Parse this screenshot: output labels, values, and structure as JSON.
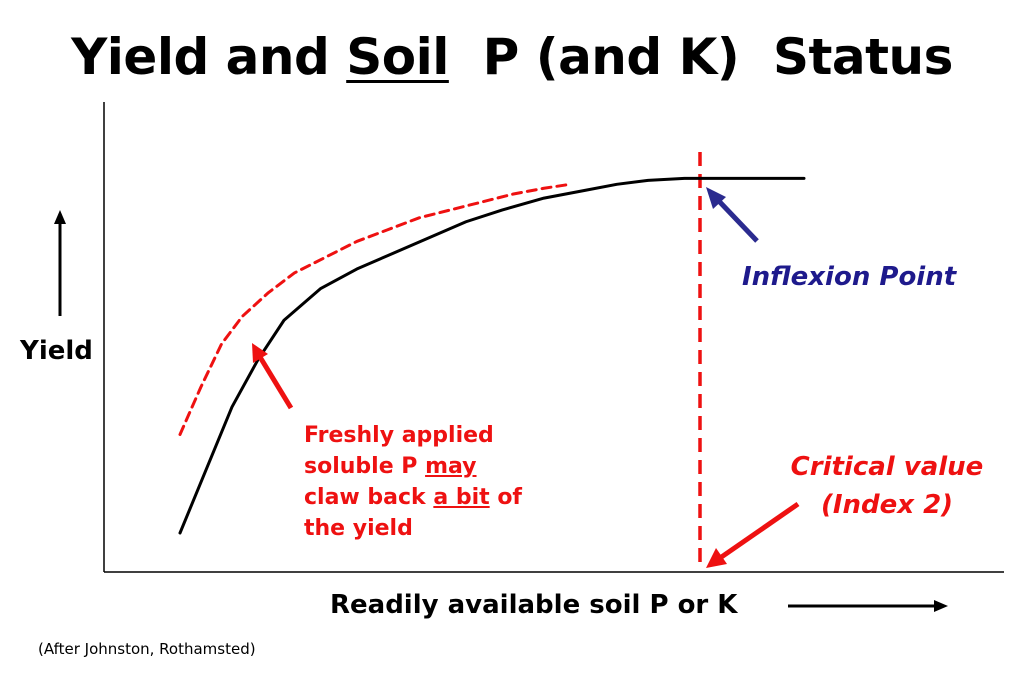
{
  "title": {
    "part1": "Yield and ",
    "underlined": "Soil",
    "part2": "  P (and K)  Status"
  },
  "source": "(After Johnston, Rothamsted)",
  "colors": {
    "axis": "#000000",
    "response_curve": "#000000",
    "fresh_curve": "#ee1111",
    "critical_line": "#ee1111",
    "inflexion_arrow": "#2b2b8f",
    "annotation_red": "#ee1111",
    "annotation_blue": "#1e1a8c"
  },
  "chart_data": {
    "type": "line",
    "title": "Yield and Soil P (and K) Status",
    "xlabel": "Readily available soil P or K",
    "ylabel": "Yield",
    "grid": false,
    "axis_ticks": false,
    "series": [
      {
        "style": "solid",
        "color": "#000000",
        "x": [
          0,
          5,
          10,
          15,
          20,
          27,
          34,
          41,
          48,
          55,
          62,
          70,
          78,
          84,
          90,
          97,
          100,
          110,
          120
        ],
        "y": [
          0,
          16,
          32,
          44,
          54,
          62,
          67,
          71,
          75,
          79,
          82,
          85,
          87,
          88.5,
          89.5,
          90,
          90,
          90,
          90
        ]
      },
      {
        "style": "dashed",
        "color": "#ee1111",
        "x": [
          0,
          4,
          8,
          12,
          17,
          22,
          28,
          34,
          40,
          46,
          52,
          58,
          64,
          70,
          75
        ],
        "y": [
          25,
          37,
          48,
          55,
          61,
          66,
          70,
          74,
          77,
          80,
          82,
          84,
          86,
          87.5,
          88.5
        ]
      }
    ],
    "critical_value_x": 100,
    "critical_line_style": "dashed",
    "annotations": {
      "inflexion": "Inflexion Point",
      "critical_line1": "Critical value",
      "critical_line2": "(Index 2)",
      "fresh_line1": "Freshly applied",
      "fresh_line2a": "soluble P ",
      "fresh_line2b": "may",
      "fresh_line3a": "claw back ",
      "fresh_line3b": "a bit",
      "fresh_line3c": " of",
      "fresh_line4": "the yield"
    }
  }
}
